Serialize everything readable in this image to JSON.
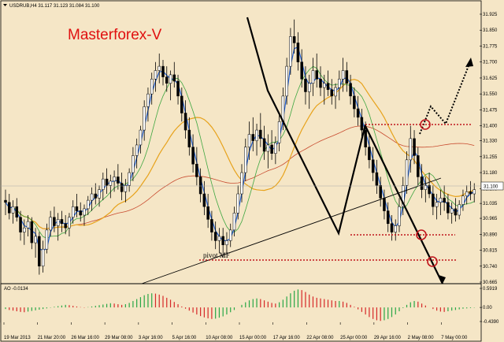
{
  "header": {
    "symbol_line": "USDRUB,H4  31.117 31.123 31.084 31.100"
  },
  "brand_label": "Masterforex-V",
  "annotations": {
    "pivot_label": "pivot MF"
  },
  "ao_panel": {
    "title": "AO -0.0134",
    "ticks": [
      "0.5919",
      "0.00",
      "-0.4390"
    ]
  },
  "colors": {
    "background": "#f5e6c6",
    "candle": "#000000",
    "ma_fast": "#1f5fd6",
    "ma_mid": "#3da640",
    "ma_slow": "#e7a21b",
    "ma_long": "#c84a2e",
    "dotted_level": "#c0151c",
    "ao_up": "#28a745",
    "ao_down": "#d62828"
  },
  "chart_data": {
    "type": "candlestick",
    "title": "USDRUB,H4",
    "ylim": [
      30.665,
      31.925
    ],
    "x_tick_labels": [
      "19 Mar 2013",
      "21 Mar 20:00",
      "26 Mar 16:00",
      "29 Mar 08:00",
      "3 Apr 16:00",
      "5 Apr 16:00",
      "10 Apr 08:00",
      "15 Apr 00:00",
      "17 Apr 16:00",
      "22 Apr 08:00",
      "25 Apr 00:00",
      "29 Apr 16:00",
      "2 May 08:00",
      "7 May 00:00"
    ],
    "y_tick_labels": [
      "31.925",
      "31.850",
      "31.775",
      "31.700",
      "31.625",
      "31.550",
      "31.475",
      "31.400",
      "31.330",
      "31.255",
      "31.180",
      "31.105",
      "31.035",
      "30.965",
      "30.890",
      "30.815",
      "30.740",
      "30.665"
    ],
    "current_price": 31.1,
    "candles": [
      [
        31.05,
        31.1,
        30.98,
        31.04
      ],
      [
        31.04,
        31.08,
        30.96,
        30.99
      ],
      [
        30.99,
        31.05,
        30.94,
        31.02
      ],
      [
        31.02,
        31.06,
        30.95,
        30.97
      ],
      [
        30.97,
        31.0,
        30.86,
        30.9
      ],
      [
        30.9,
        30.96,
        30.84,
        30.92
      ],
      [
        30.92,
        30.98,
        30.88,
        30.95
      ],
      [
        30.95,
        30.97,
        30.82,
        30.85
      ],
      [
        30.85,
        30.92,
        30.78,
        30.88
      ],
      [
        30.88,
        30.9,
        30.7,
        30.74
      ],
      [
        30.74,
        30.86,
        30.71,
        30.82
      ],
      [
        30.82,
        30.94,
        30.8,
        30.91
      ],
      [
        30.91,
        31.0,
        30.88,
        30.97
      ],
      [
        30.97,
        31.02,
        30.9,
        30.93
      ],
      [
        30.93,
        30.99,
        30.86,
        30.96
      ],
      [
        30.96,
        31.0,
        30.9,
        30.94
      ],
      [
        30.94,
        30.98,
        30.89,
        30.92
      ],
      [
        30.92,
        30.99,
        30.88,
        30.97
      ],
      [
        30.97,
        31.05,
        30.94,
        31.02
      ],
      [
        31.02,
        31.08,
        30.97,
        31.0
      ],
      [
        31.0,
        31.04,
        30.95,
        30.98
      ],
      [
        30.98,
        31.03,
        30.93,
        31.01
      ],
      [
        31.01,
        31.07,
        30.98,
        31.05
      ],
      [
        31.05,
        31.11,
        31.0,
        31.08
      ],
      [
        31.08,
        31.13,
        31.03,
        31.06
      ],
      [
        31.06,
        31.12,
        31.02,
        31.1
      ],
      [
        31.1,
        31.18,
        31.05,
        31.15
      ],
      [
        31.15,
        31.2,
        31.08,
        31.12
      ],
      [
        31.12,
        31.17,
        31.06,
        31.14
      ],
      [
        31.14,
        31.19,
        31.09,
        31.16
      ],
      [
        31.16,
        31.22,
        31.1,
        31.13
      ],
      [
        31.13,
        31.18,
        31.05,
        31.09
      ],
      [
        31.09,
        31.15,
        31.04,
        31.12
      ],
      [
        31.12,
        31.2,
        31.09,
        31.18
      ],
      [
        31.18,
        31.3,
        31.14,
        31.26
      ],
      [
        31.26,
        31.34,
        31.2,
        31.31
      ],
      [
        31.31,
        31.4,
        31.27,
        31.38
      ],
      [
        31.38,
        31.52,
        31.33,
        31.49
      ],
      [
        31.49,
        31.58,
        31.42,
        31.55
      ],
      [
        31.55,
        31.65,
        31.5,
        31.62
      ],
      [
        31.62,
        31.7,
        31.56,
        31.66
      ],
      [
        31.66,
        31.74,
        31.6,
        31.68
      ],
      [
        31.68,
        31.71,
        31.59,
        31.63
      ],
      [
        31.63,
        31.68,
        31.56,
        31.6
      ],
      [
        31.6,
        31.66,
        31.52,
        31.64
      ],
      [
        31.64,
        31.7,
        31.58,
        31.61
      ],
      [
        31.61,
        31.64,
        31.5,
        31.54
      ],
      [
        31.54,
        31.58,
        31.42,
        31.46
      ],
      [
        31.46,
        31.52,
        31.34,
        31.38
      ],
      [
        31.38,
        31.44,
        31.26,
        31.3
      ],
      [
        31.3,
        31.36,
        31.18,
        31.22
      ],
      [
        31.22,
        31.3,
        31.12,
        31.16
      ],
      [
        31.16,
        31.2,
        31.04,
        31.08
      ],
      [
        31.08,
        31.14,
        30.98,
        31.02
      ],
      [
        31.02,
        31.08,
        30.92,
        30.96
      ],
      [
        30.96,
        31.0,
        30.86,
        30.9
      ],
      [
        30.9,
        30.95,
        30.82,
        30.86
      ],
      [
        30.86,
        30.92,
        30.8,
        30.88
      ],
      [
        30.88,
        30.92,
        30.78,
        30.84
      ],
      [
        30.84,
        30.9,
        30.8,
        30.86
      ],
      [
        30.86,
        30.94,
        30.83,
        30.91
      ],
      [
        30.91,
        31.02,
        30.88,
        30.99
      ],
      [
        30.99,
        31.12,
        30.96,
        31.08
      ],
      [
        31.08,
        31.22,
        31.04,
        31.18
      ],
      [
        31.18,
        31.34,
        31.14,
        31.3
      ],
      [
        31.3,
        31.42,
        31.24,
        31.36
      ],
      [
        31.36,
        31.44,
        31.28,
        31.33
      ],
      [
        31.33,
        31.41,
        31.26,
        31.38
      ],
      [
        31.38,
        31.46,
        31.3,
        31.34
      ],
      [
        31.34,
        31.4,
        31.24,
        31.28
      ],
      [
        31.28,
        31.36,
        31.2,
        31.31
      ],
      [
        31.31,
        31.38,
        31.24,
        31.27
      ],
      [
        31.27,
        31.35,
        31.22,
        31.32
      ],
      [
        31.32,
        31.46,
        31.28,
        31.42
      ],
      [
        31.42,
        31.58,
        31.38,
        31.54
      ],
      [
        31.54,
        31.72,
        31.5,
        31.68
      ],
      [
        31.68,
        31.86,
        31.64,
        31.82
      ],
      [
        31.82,
        31.9,
        31.74,
        31.79
      ],
      [
        31.79,
        31.84,
        31.66,
        31.7
      ],
      [
        31.7,
        31.76,
        31.58,
        31.62
      ],
      [
        31.62,
        31.68,
        31.5,
        31.56
      ],
      [
        31.56,
        31.64,
        31.48,
        31.6
      ],
      [
        31.6,
        31.72,
        31.54,
        31.66
      ],
      [
        31.66,
        31.74,
        31.58,
        31.62
      ],
      [
        31.62,
        31.68,
        31.54,
        31.58
      ],
      [
        31.58,
        31.64,
        31.5,
        31.6
      ],
      [
        31.6,
        31.66,
        31.54,
        31.57
      ],
      [
        31.57,
        31.62,
        31.5,
        31.54
      ],
      [
        31.54,
        31.6,
        31.48,
        31.58
      ],
      [
        31.58,
        31.66,
        31.52,
        31.62
      ],
      [
        31.62,
        31.72,
        31.56,
        31.66
      ],
      [
        31.66,
        31.7,
        31.56,
        31.6
      ],
      [
        31.6,
        31.64,
        31.5,
        31.54
      ],
      [
        31.54,
        31.58,
        31.44,
        31.48
      ],
      [
        31.48,
        31.54,
        31.4,
        31.44
      ],
      [
        31.44,
        31.48,
        31.34,
        31.38
      ],
      [
        31.38,
        31.42,
        31.26,
        31.3
      ],
      [
        31.3,
        31.36,
        31.2,
        31.24
      ],
      [
        31.24,
        31.3,
        31.14,
        31.18
      ],
      [
        31.18,
        31.24,
        31.08,
        31.12
      ],
      [
        31.12,
        31.16,
        31.02,
        31.06
      ],
      [
        31.06,
        31.1,
        30.96,
        31.0
      ],
      [
        31.0,
        31.04,
        30.9,
        30.94
      ],
      [
        30.94,
        30.98,
        30.86,
        30.9
      ],
      [
        30.9,
        30.96,
        30.86,
        30.93
      ],
      [
        30.93,
        31.06,
        30.9,
        31.02
      ],
      [
        31.02,
        31.16,
        30.98,
        31.12
      ],
      [
        31.12,
        31.28,
        31.08,
        31.24
      ],
      [
        31.24,
        31.4,
        31.18,
        31.34
      ],
      [
        31.34,
        31.38,
        31.22,
        31.26
      ],
      [
        31.26,
        31.3,
        31.12,
        31.16
      ],
      [
        31.16,
        31.22,
        31.06,
        31.1
      ],
      [
        31.1,
        31.16,
        31.04,
        31.12
      ],
      [
        31.12,
        31.18,
        31.06,
        31.08
      ],
      [
        31.08,
        31.12,
        30.98,
        31.02
      ],
      [
        31.02,
        31.08,
        30.96,
        31.04
      ],
      [
        31.04,
        31.1,
        30.98,
        31.06
      ],
      [
        31.06,
        31.12,
        31.0,
        31.04
      ],
      [
        31.04,
        31.08,
        30.96,
        30.99
      ],
      [
        30.99,
        31.04,
        30.94,
        31.01
      ],
      [
        31.01,
        31.06,
        30.95,
        30.98
      ],
      [
        30.98,
        31.05,
        30.96,
        31.03
      ],
      [
        31.03,
        31.1,
        31.0,
        31.07
      ],
      [
        31.07,
        31.12,
        31.03,
        31.09
      ],
      [
        31.09,
        31.14,
        31.05,
        31.08
      ],
      [
        31.08,
        31.13,
        31.04,
        31.1
      ]
    ],
    "x_axis_labels_note": "",
    "ao_values": [
      -0.05,
      -0.08,
      -0.1,
      -0.12,
      -0.14,
      -0.15,
      -0.13,
      -0.11,
      -0.09,
      -0.07,
      -0.05,
      -0.03,
      -0.01,
      0.02,
      0.04,
      0.06,
      0.08,
      0.07,
      0.05,
      0.03,
      0.01,
      -0.01,
      0.01,
      0.03,
      0.05,
      0.07,
      0.09,
      0.11,
      0.13,
      0.12,
      0.1,
      0.08,
      0.1,
      0.14,
      0.2,
      0.26,
      0.32,
      0.38,
      0.42,
      0.44,
      0.43,
      0.4,
      0.36,
      0.3,
      0.24,
      0.17,
      0.1,
      0.03,
      -0.04,
      -0.1,
      -0.16,
      -0.22,
      -0.27,
      -0.31,
      -0.34,
      -0.36,
      -0.35,
      -0.32,
      -0.28,
      -0.22,
      -0.15,
      -0.08,
      0.0,
      0.08,
      0.16,
      0.22,
      0.26,
      0.28,
      0.26,
      0.22,
      0.18,
      0.14,
      0.12,
      0.16,
      0.24,
      0.34,
      0.44,
      0.52,
      0.56,
      0.54,
      0.48,
      0.4,
      0.34,
      0.3,
      0.28,
      0.26,
      0.24,
      0.22,
      0.2,
      0.2,
      0.18,
      0.14,
      0.08,
      0.02,
      -0.06,
      -0.14,
      -0.22,
      -0.3,
      -0.36,
      -0.4,
      -0.42,
      -0.4,
      -0.36,
      -0.3,
      -0.22,
      -0.12,
      -0.02,
      0.08,
      0.16,
      0.2,
      0.18,
      0.12,
      0.06,
      0.0,
      -0.05,
      -0.1,
      -0.13,
      -0.14,
      -0.12,
      -0.1,
      -0.08,
      -0.06,
      -0.04,
      -0.03,
      -0.02,
      -0.01
    ]
  }
}
